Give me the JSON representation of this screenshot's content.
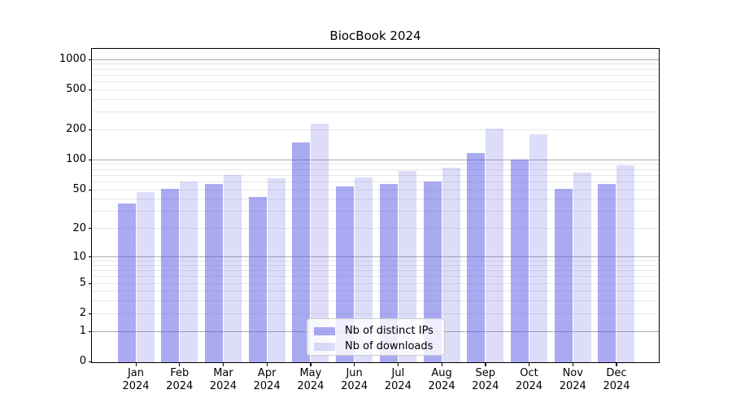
{
  "chart_data": {
    "type": "bar",
    "title": "BiocBook 2024",
    "categories": [
      "Jan 2024",
      "Feb 2024",
      "Mar 2024",
      "Apr 2024",
      "May 2024",
      "Jun 2024",
      "Jul 2024",
      "Aug 2024",
      "Sep 2024",
      "Oct 2024",
      "Nov 2024",
      "Dec 2024"
    ],
    "series": [
      {
        "name": "Nb of distinct IPs",
        "color": "#5555e8",
        "alpha": 0.5,
        "values": [
          36,
          51,
          57,
          42,
          150,
          54,
          57,
          61,
          117,
          101,
          51,
          57
        ]
      },
      {
        "name": "Nb of downloads",
        "color": "#5555e8",
        "alpha": 0.2,
        "values": [
          47,
          60,
          70,
          65,
          228,
          66,
          78,
          84,
          206,
          180,
          74,
          88
        ]
      }
    ],
    "xlabel": "",
    "ylabel": "",
    "yscale": "log1p",
    "yticks": [
      0,
      1,
      2,
      5,
      10,
      20,
      50,
      100,
      200,
      500,
      1000
    ],
    "ylim": [
      0,
      1280
    ],
    "grid": "both",
    "legend_position": "lower-center-inside"
  },
  "colors": {
    "ips_bar_effective": "#aaaaf4",
    "downloads_bar_effective": "#ddddfa",
    "major_grid": "#b3b3b3",
    "minor_grid": "#e9e9e9",
    "axis": "#000000",
    "background": "#ffffff"
  }
}
